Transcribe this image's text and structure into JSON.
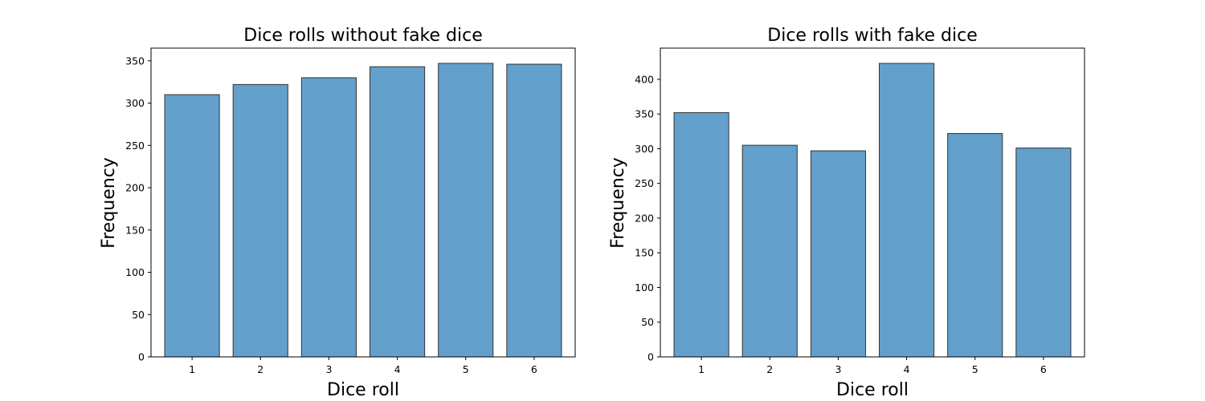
{
  "chart_data": [
    {
      "type": "bar",
      "title": "Dice rolls without fake dice",
      "xlabel": "Dice roll",
      "ylabel": "Frequency",
      "categories": [
        "1",
        "2",
        "3",
        "4",
        "5",
        "6"
      ],
      "values": [
        310,
        322,
        330,
        343,
        347,
        346
      ],
      "ylim": [
        0,
        365
      ],
      "yticks": [
        0,
        50,
        100,
        150,
        200,
        250,
        300,
        350
      ],
      "bar_color": "#63a0cb",
      "edge_color": "#333333",
      "grid": false,
      "legend": "none"
    },
    {
      "type": "bar",
      "title": "Dice rolls with fake dice",
      "xlabel": "Dice roll",
      "ylabel": "Frequency",
      "categories": [
        "1",
        "2",
        "3",
        "4",
        "5",
        "6"
      ],
      "values": [
        352,
        305,
        297,
        423,
        322,
        301
      ],
      "ylim": [
        0,
        445
      ],
      "yticks": [
        0,
        50,
        100,
        150,
        200,
        250,
        300,
        350,
        400
      ],
      "bar_color": "#63a0cb",
      "edge_color": "#333333",
      "grid": false,
      "legend": "none"
    }
  ]
}
